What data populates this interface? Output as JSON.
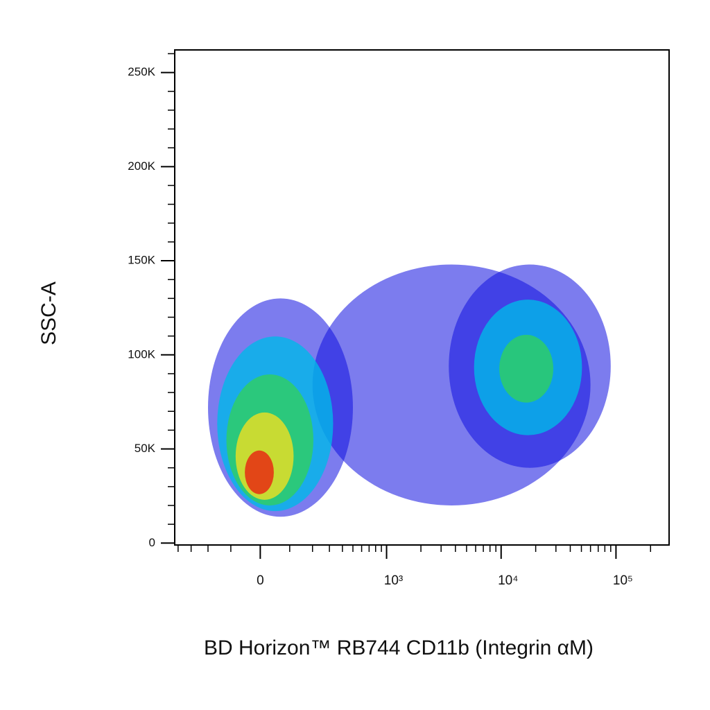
{
  "chart_data": {
    "type": "density",
    "x_label": "BD Horizon™ RB744 CD11b (Integrin αM)",
    "y_label": "SSC-A",
    "x_scale": "arcsinh",
    "x_cofactor": 160,
    "xlim": [
      -430,
      290000
    ],
    "xticks": [
      0,
      {
        "value": 1000,
        "label": "10³"
      },
      {
        "value": 10000,
        "label": "10⁴"
      },
      {
        "value": 100000,
        "label": "10⁵"
      }
    ],
    "xminorticks": [
      -400,
      -300,
      -200,
      -100,
      100,
      200,
      300,
      400,
      500,
      600,
      700,
      800,
      900,
      2000,
      3000,
      4000,
      5000,
      6000,
      7000,
      8000,
      9000,
      20000,
      30000,
      40000,
      50000,
      60000,
      70000,
      80000,
      90000,
      200000
    ],
    "ylim": [
      -1000,
      262000
    ],
    "yticks": [
      0,
      {
        "value": 50000,
        "label": "50K"
      },
      {
        "value": 100000,
        "label": "100K"
      },
      {
        "value": 150000,
        "label": "150K"
      },
      {
        "value": 200000,
        "label": "200K"
      },
      {
        "value": 250000,
        "label": "250K"
      }
    ],
    "yminorticks": [
      10000,
      20000,
      30000,
      40000,
      60000,
      70000,
      80000,
      90000,
      110000,
      120000,
      130000,
      140000,
      160000,
      170000,
      180000,
      190000,
      210000,
      220000,
      230000,
      240000,
      260000
    ],
    "populations": [
      {
        "x_range": [
          200,
          60000
        ],
        "y_range": [
          20000,
          148000
        ],
        "center": [
          2500,
          65000
        ],
        "levels": 1
      },
      {
        "x_range": [
          3500,
          90000
        ],
        "y_range": [
          40000,
          148000
        ],
        "center": [
          16000,
          92000
        ],
        "levels": 3
      },
      {
        "x_range": [
          -200,
          500
        ],
        "y_range": [
          14000,
          130000
        ],
        "center": [
          -20,
          29000
        ],
        "levels": 5
      }
    ]
  }
}
